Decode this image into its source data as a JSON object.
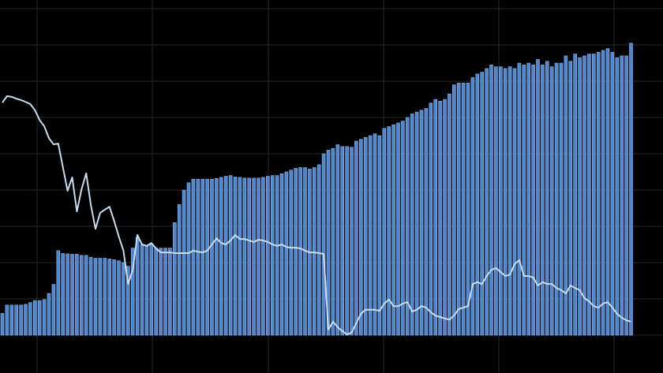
{
  "chart_data": {
    "type": "bar",
    "categories": [
      null,
      null,
      null,
      null,
      null,
      null,
      null,
      null,
      null,
      null,
      null,
      null,
      null,
      null,
      null,
      null,
      null,
      null,
      null,
      null,
      null,
      null,
      null,
      null,
      null,
      null,
      null,
      null,
      null,
      null,
      null,
      null,
      null,
      null,
      null,
      null,
      null,
      null,
      null,
      null,
      null,
      null,
      null,
      null,
      null,
      null,
      null,
      null,
      null,
      null,
      null,
      null,
      null,
      null,
      null,
      null,
      null,
      null,
      null,
      null,
      null,
      null,
      null,
      null,
      null,
      null,
      null,
      null,
      null,
      null,
      null,
      null,
      null,
      null,
      null,
      null,
      null,
      null,
      null,
      null,
      null,
      null,
      null,
      null,
      null,
      null,
      null,
      null,
      null,
      null,
      null,
      null,
      null,
      null,
      null,
      null,
      null,
      null,
      null,
      null,
      null,
      null,
      null,
      null,
      null,
      null,
      null,
      null,
      null,
      null,
      null,
      null,
      null,
      null,
      null,
      null,
      null,
      null,
      null,
      null,
      null,
      null,
      null,
      null,
      null,
      null,
      null,
      null,
      null,
      null,
      null,
      null,
      null,
      null,
      null,
      null
    ],
    "series": [
      {
        "type": "bar",
        "color": "#4f86d0",
        "values": [
          0.6,
          0.83,
          0.83,
          0.83,
          0.83,
          0.85,
          0.9,
          0.95,
          0.95,
          0.98,
          1.15,
          1.4,
          2.33,
          2.25,
          2.24,
          2.23,
          2.23,
          2.2,
          2.2,
          2.15,
          2.12,
          2.12,
          2.12,
          2.1,
          2.08,
          2.05,
          2.0,
          1.9,
          2.4,
          2.7,
          2.5,
          2.45,
          2.5,
          2.4,
          2.4,
          2.4,
          2.4,
          3.1,
          3.6,
          4.0,
          4.2,
          4.3,
          4.3,
          4.3,
          4.3,
          4.3,
          4.32,
          4.35,
          4.38,
          4.4,
          4.36,
          4.35,
          4.33,
          4.33,
          4.33,
          4.33,
          4.35,
          4.38,
          4.4,
          4.4,
          4.45,
          4.5,
          4.55,
          4.6,
          4.62,
          4.62,
          4.58,
          4.62,
          4.7,
          5.0,
          5.1,
          5.15,
          5.25,
          5.2,
          5.2,
          5.18,
          5.35,
          5.4,
          5.45,
          5.5,
          5.55,
          5.5,
          5.7,
          5.75,
          5.8,
          5.85,
          5.9,
          6.0,
          6.1,
          6.15,
          6.2,
          6.25,
          6.4,
          6.5,
          6.45,
          6.5,
          6.65,
          6.9,
          6.95,
          6.95,
          6.95,
          7.1,
          7.2,
          7.25,
          7.35,
          7.45,
          7.4,
          7.4,
          7.35,
          7.4,
          7.35,
          7.5,
          7.45,
          7.5,
          7.45,
          7.6,
          7.45,
          7.55,
          7.4,
          7.5,
          7.5,
          7.7,
          7.55,
          7.75,
          7.65,
          7.7,
          7.75,
          7.75,
          7.8,
          7.85,
          7.9,
          7.8,
          7.65,
          7.7,
          7.7,
          8.05
        ]
      },
      {
        "type": "line",
        "color": "#c9ddf2",
        "values": [
          6.41,
          6.59,
          6.57,
          6.52,
          6.48,
          6.43,
          6.37,
          6.2,
          5.93,
          5.76,
          5.43,
          5.26,
          5.28,
          4.63,
          3.98,
          4.35,
          3.41,
          4.02,
          4.46,
          3.59,
          2.93,
          3.37,
          3.46,
          3.54,
          3.15,
          2.72,
          2.33,
          1.41,
          1.8,
          2.76,
          2.5,
          2.46,
          2.54,
          2.39,
          2.28,
          2.28,
          2.28,
          2.26,
          2.26,
          2.26,
          2.26,
          2.33,
          2.3,
          2.28,
          2.33,
          2.5,
          2.67,
          2.54,
          2.5,
          2.61,
          2.76,
          2.65,
          2.65,
          2.61,
          2.57,
          2.63,
          2.61,
          2.57,
          2.5,
          2.46,
          2.5,
          2.43,
          2.41,
          2.41,
          2.39,
          2.33,
          2.28,
          2.28,
          2.26,
          2.24,
          0.15,
          0.37,
          0.22,
          0.11,
          0.02,
          0.07,
          0.33,
          0.59,
          0.7,
          0.7,
          0.7,
          0.67,
          0.87,
          0.98,
          0.8,
          0.8,
          0.87,
          0.91,
          0.65,
          0.7,
          0.8,
          0.76,
          0.63,
          0.54,
          0.5,
          0.46,
          0.43,
          0.54,
          0.72,
          0.76,
          0.8,
          1.41,
          1.46,
          1.41,
          1.63,
          1.8,
          1.85,
          1.74,
          1.63,
          1.67,
          1.96,
          2.07,
          1.63,
          1.63,
          1.59,
          1.37,
          1.46,
          1.41,
          1.41,
          1.3,
          1.24,
          1.15,
          1.37,
          1.3,
          1.24,
          1.02,
          0.93,
          0.8,
          0.76,
          0.87,
          0.91,
          0.76,
          0.59,
          0.48,
          0.41,
          0.37
        ]
      }
    ],
    "ylim": [
      0,
      9.24
    ],
    "yticks": [
      0,
      1,
      2,
      3,
      4,
      5,
      6,
      7,
      8,
      9
    ],
    "grid": true
  }
}
